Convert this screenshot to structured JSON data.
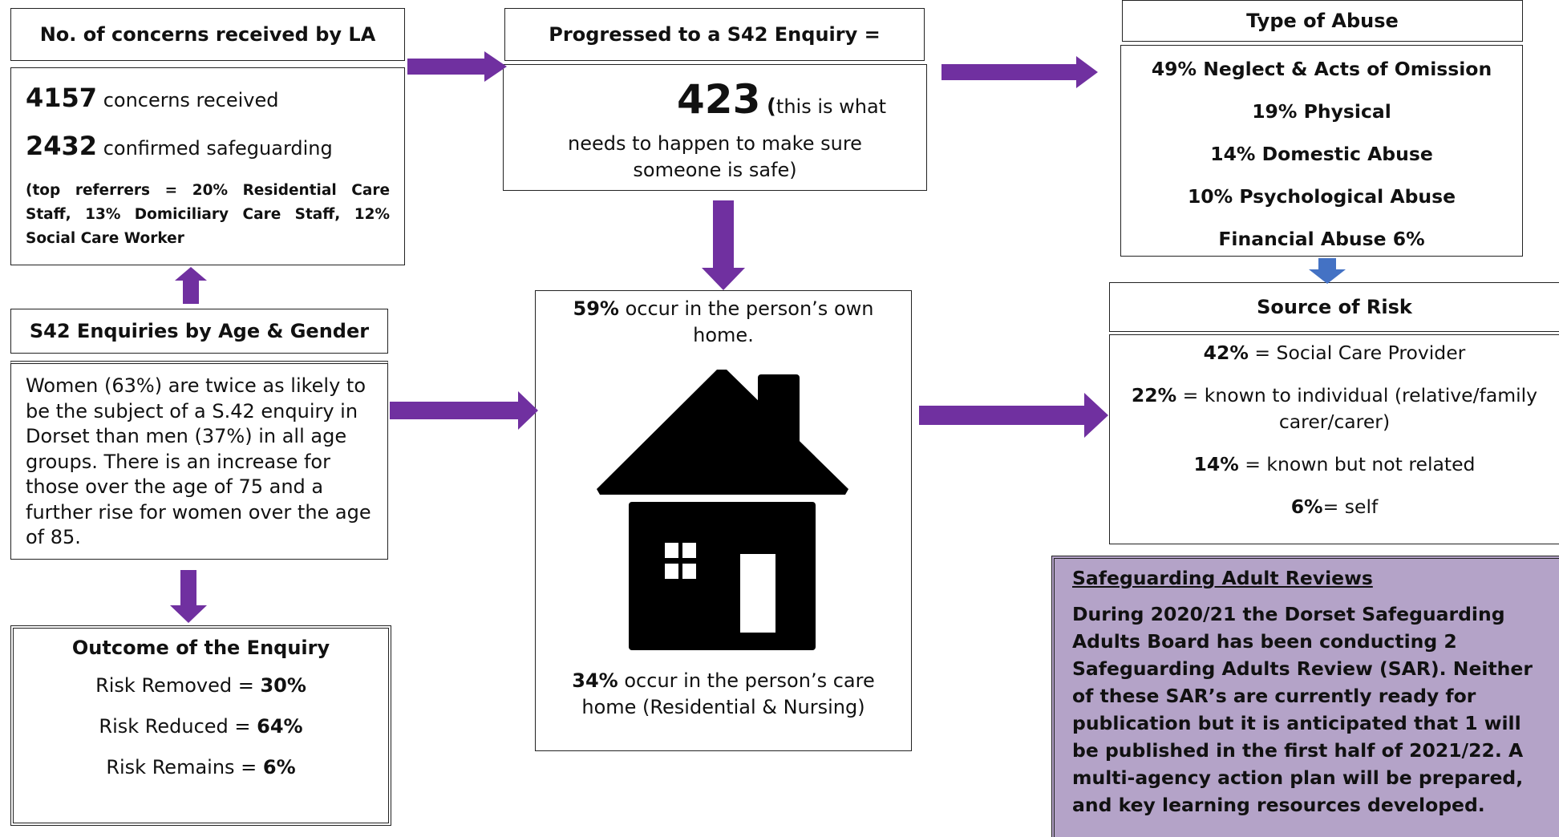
{
  "concerns": {
    "header": "No. of concerns received by LA",
    "concerns_value": "4157",
    "concerns_label": "concerns received",
    "confirmed_value": "2432",
    "confirmed_label": "confirmed safeguarding",
    "referrers": "(top referrers = 20% Residential Care Staff, 13% Domiciliary Care Staff, 12% Social Care Worker"
  },
  "enquiry": {
    "header": "Progressed to a S42 Enquiry =",
    "value": "423",
    "paren": "(",
    "text_line1": "this is what",
    "text_line2": "needs to happen to make sure",
    "text_line3": "someone is safe)"
  },
  "abuse": {
    "header": "Type of Abuse",
    "items": [
      "49% Neglect & Acts of Omission",
      "19% Physical",
      "14% Domestic Abuse",
      "10% Psychological Abuse",
      "Financial Abuse 6%"
    ]
  },
  "age_gender": {
    "header": "S42 Enquiries by Age & Gender",
    "text": "Women (63%) are twice as likely to be the subject of a S.42 enquiry in Dorset than men (37%) in all age groups. There is an increase for those over the age of 75 and a further rise for women over the age of 85."
  },
  "location": {
    "top_pct": "59%",
    "top_text": "occur in the person’s own home.",
    "bottom_pct": "34%",
    "bottom_text": "occur in the person’s care home (Residential & Nursing)",
    "icon": "house-icon"
  },
  "risk_source": {
    "header": "Source of Risk",
    "items": [
      {
        "pct": "42%",
        "text": "= Social Care Provider"
      },
      {
        "pct": "22%",
        "text": "= known to individual (relative/family carer/carer)"
      },
      {
        "pct": "14%",
        "text": "= known but not related"
      },
      {
        "pct": "6%",
        "text": "= self"
      }
    ]
  },
  "outcome": {
    "header": "Outcome of the Enquiry",
    "items": [
      {
        "label": "Risk Removed = ",
        "value": "30%"
      },
      {
        "label": "Risk Reduced = ",
        "value": "64%"
      },
      {
        "label": "Risk Remains = ",
        "value": "6%"
      }
    ]
  },
  "sar": {
    "title": "Safeguarding Adult Reviews",
    "text": "During 2020/21  the Dorset Safeguarding Adults Board has been conducting 2 Safeguarding Adults Review (SAR). Neither of these SAR’s are currently ready for publication but it is anticipated that 1 will be published in the first half of 2021/22.  A multi-agency action plan will be prepared, and key learning resources developed."
  },
  "colors": {
    "arrow_purple": "#7030a0",
    "arrow_blue": "#4472c4",
    "sar_background": "#b4a3c8"
  }
}
